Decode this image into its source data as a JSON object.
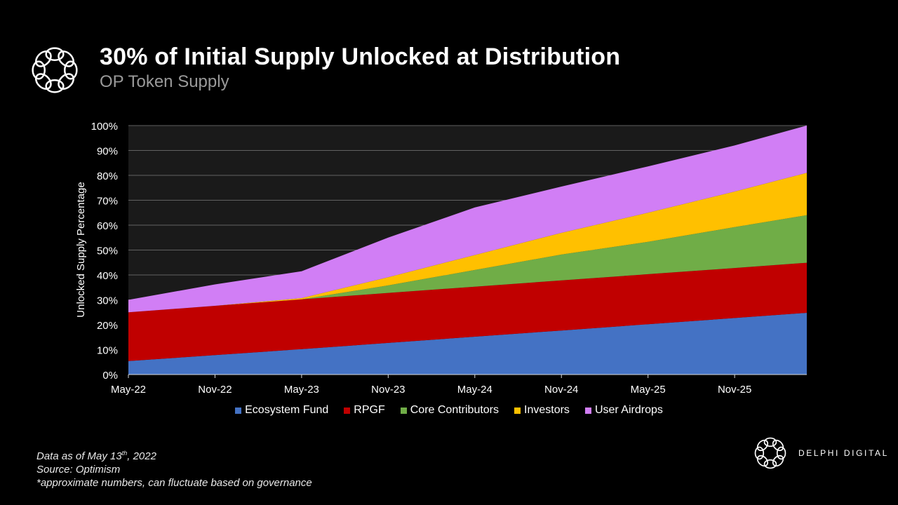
{
  "header": {
    "logo_icon": "flower-ring-logo-icon",
    "title": "30% of Initial Supply Unlocked at Distribution",
    "subtitle": "OP Token Supply"
  },
  "chart_data": {
    "type": "area",
    "stacked": true,
    "title": "30% of Initial Supply Unlocked at Distribution",
    "subtitle": "OP Token Supply",
    "xlabel": "",
    "ylabel": "Unlocked Supply Percentage",
    "ylim": [
      0,
      100
    ],
    "yticks": [
      "0%",
      "10%",
      "20%",
      "30%",
      "40%",
      "50%",
      "60%",
      "70%",
      "80%",
      "90%",
      "100%"
    ],
    "x_ticks": [
      "May-22",
      "Nov-22",
      "May-23",
      "Nov-23",
      "May-24",
      "Nov-24",
      "May-25",
      "Nov-25"
    ],
    "x_months": [
      0,
      6,
      12,
      18,
      24,
      30,
      36,
      42,
      47
    ],
    "grid": true,
    "legend_position": "bottom",
    "series": [
      {
        "name": "Ecosystem Fund",
        "color": "#4472C4",
        "values": [
          5.4,
          7.8,
          10.2,
          12.7,
          15.2,
          17.7,
          20.2,
          22.7,
          24.8
        ]
      },
      {
        "name": "RPGF",
        "color": "#C00000",
        "values": [
          19.6,
          19.8,
          20.0,
          20.1,
          20.1,
          20.1,
          20.1,
          20.1,
          20.1
        ]
      },
      {
        "name": "Core Contributors",
        "color": "#70AD47",
        "values": [
          0,
          0,
          0,
          3.0,
          6.7,
          10.4,
          13.0,
          16.4,
          19.1
        ]
      },
      {
        "name": "Investors",
        "color": "#FFC000",
        "values": [
          0,
          0,
          0.5,
          3.3,
          6.0,
          8.7,
          11.7,
          14.3,
          17.0
        ]
      },
      {
        "name": "User Airdrops",
        "color": "#D17EF5",
        "values": [
          5.0,
          8.6,
          10.8,
          15.9,
          19.1,
          18.6,
          18.6,
          18.5,
          19.0
        ]
      }
    ]
  },
  "footer": {
    "note_line1_prefix": "Data as of May 13",
    "note_line1_sup": "th",
    "note_line1_suffix": ", 2022",
    "note_line2": "Source: Optimism",
    "note_line3": "*approximate numbers, can fluctuate based on governance",
    "brand_name": "DELPHI DIGITAL",
    "brand_icon": "flower-ring-logo-icon"
  }
}
